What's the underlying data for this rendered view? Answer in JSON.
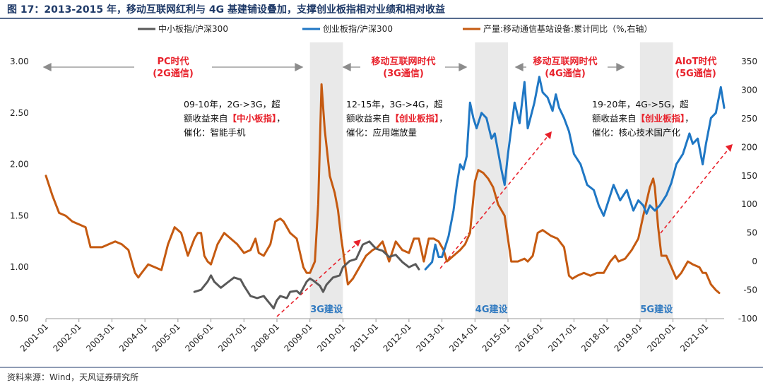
{
  "title": "图 17：2013-2015 年，移动互联网红利与 4G 基建铺设叠加，支撑创业板指相对业绩和相对收益",
  "source": "资料来源：Wind，天风证券研究所",
  "colors": {
    "sme": "#595959",
    "chinext": "#1f77c4",
    "output": "#c55a11",
    "era": "#e8212b",
    "build": "#2f79c0",
    "arrow": "#e8212b",
    "band": "#e9e9e9",
    "title": "#1f3a68"
  },
  "eras": [
    {
      "label1": "PC时代",
      "label2": "(2G通信)"
    },
    {
      "label1": "移动互联网时代",
      "label2": "(3G通信)"
    },
    {
      "label1": "移动互联网时代",
      "label2": "(4G通信)"
    },
    {
      "label1": "AIoT时代",
      "label2": "(5G通信)"
    }
  ],
  "builds": [
    "3G建设",
    "4G建设",
    "5G建设"
  ],
  "notes": [
    {
      "line1": "09-10年，2G->3G，超",
      "line2_pre": "额收益来自",
      "line2_red": "【中小板指】",
      "line2_post": "，",
      "line3": "催化：智能手机"
    },
    {
      "line1": "12-15年，3G->4G，超",
      "line2_pre": "额收益来自",
      "line2_red": "【创业板指】",
      "line2_post": "，",
      "line3": "催化：应用端放量"
    },
    {
      "line1": "19-20年，4G->5G，超",
      "line2_pre": "额收益来自",
      "line2_red": "【创业板指】",
      "line2_post": "，",
      "line3": "催化：核心技术国产化"
    }
  ],
  "chart_data": {
    "type": "line",
    "title": "图 17：2013-2015 年，移动互联网红利与 4G 基建铺设叠加，支撑创业板指相对业绩和相对收益",
    "x_labels": [
      "2001-01",
      "2002-01",
      "2003-01",
      "2004-01",
      "2005-01",
      "2006-01",
      "2007-01",
      "2008-01",
      "2009-01",
      "2010-01",
      "2011-01",
      "2012-01",
      "2013-01",
      "2014-01",
      "2015-01",
      "2016-01",
      "2017-01",
      "2018-01",
      "2019-01",
      "2020-01",
      "2021-01"
    ],
    "y_left": {
      "ylim": [
        0.5,
        3.0
      ],
      "ticks": [
        "0.50",
        "1.00",
        "1.50",
        "2.00",
        "2.50",
        "3.00"
      ]
    },
    "y_right": {
      "ylim": [
        -100,
        350
      ],
      "ticks": [
        "-100",
        "-50",
        "0",
        "50",
        "100",
        "150",
        "200",
        "250",
        "300",
        "350"
      ],
      "label": "%,右轴"
    },
    "legend_position": "top",
    "shaded_periods": [
      {
        "label": "3G建设",
        "start": "2009-01",
        "end": "2010-01"
      },
      {
        "label": "4G建设",
        "start": "2014-01",
        "end": "2015-01"
      },
      {
        "label": "5G建设",
        "start": "2019-01",
        "end": "2020-01"
      }
    ],
    "series": [
      {
        "name": "中小板指/沪深300",
        "axis": "left",
        "points": [
          [
            2005.5,
            0.76
          ],
          [
            2005.7,
            0.78
          ],
          [
            2005.9,
            0.86
          ],
          [
            2006.0,
            0.92
          ],
          [
            2006.1,
            0.86
          ],
          [
            2006.3,
            0.8
          ],
          [
            2006.5,
            0.85
          ],
          [
            2006.7,
            0.9
          ],
          [
            2006.9,
            0.88
          ],
          [
            2007.0,
            0.82
          ],
          [
            2007.2,
            0.72
          ],
          [
            2007.4,
            0.7
          ],
          [
            2007.6,
            0.72
          ],
          [
            2007.8,
            0.64
          ],
          [
            2007.9,
            0.6
          ],
          [
            2008.0,
            0.68
          ],
          [
            2008.1,
            0.72
          ],
          [
            2008.3,
            0.7
          ],
          [
            2008.4,
            0.76
          ],
          [
            2008.6,
            0.77
          ],
          [
            2008.7,
            0.74
          ],
          [
            2008.9,
            0.86
          ],
          [
            2009.0,
            0.89
          ],
          [
            2009.1,
            0.87
          ],
          [
            2009.3,
            0.82
          ],
          [
            2009.4,
            0.76
          ],
          [
            2009.5,
            0.83
          ],
          [
            2009.7,
            0.9
          ],
          [
            2009.9,
            0.92
          ],
          [
            2010.0,
            1.0
          ],
          [
            2010.2,
            1.06
          ],
          [
            2010.4,
            1.08
          ],
          [
            2010.6,
            1.22
          ],
          [
            2010.8,
            1.25
          ],
          [
            2011.0,
            1.18
          ],
          [
            2011.2,
            1.16
          ],
          [
            2011.4,
            1.1
          ],
          [
            2011.6,
            1.12
          ],
          [
            2011.8,
            1.05
          ],
          [
            2012.0,
            1.0
          ],
          [
            2012.2,
            1.03
          ],
          [
            2012.3,
            0.98
          ]
        ]
      },
      {
        "name": "创业板指/沪深300",
        "axis": "left",
        "points": [
          [
            2012.5,
            0.98
          ],
          [
            2012.7,
            1.05
          ],
          [
            2012.8,
            1.22
          ],
          [
            2012.9,
            1.1
          ],
          [
            2013.0,
            1.1
          ],
          [
            2013.1,
            1.2
          ],
          [
            2013.2,
            1.3
          ],
          [
            2013.35,
            1.55
          ],
          [
            2013.45,
            1.8
          ],
          [
            2013.55,
            2.0
          ],
          [
            2013.65,
            1.95
          ],
          [
            2013.75,
            2.08
          ],
          [
            2013.85,
            2.6
          ],
          [
            2013.95,
            2.45
          ],
          [
            2014.05,
            2.35
          ],
          [
            2014.2,
            2.5
          ],
          [
            2014.35,
            2.45
          ],
          [
            2014.5,
            2.25
          ],
          [
            2014.6,
            2.3
          ],
          [
            2014.8,
            1.95
          ],
          [
            2014.9,
            1.8
          ],
          [
            2015.0,
            2.1
          ],
          [
            2015.2,
            2.6
          ],
          [
            2015.35,
            2.4
          ],
          [
            2015.5,
            2.8
          ],
          [
            2015.6,
            2.35
          ],
          [
            2015.8,
            2.6
          ],
          [
            2015.95,
            2.85
          ],
          [
            2016.05,
            2.7
          ],
          [
            2016.2,
            2.65
          ],
          [
            2016.35,
            2.52
          ],
          [
            2016.45,
            2.68
          ],
          [
            2016.55,
            2.55
          ],
          [
            2016.7,
            2.45
          ],
          [
            2016.85,
            2.32
          ],
          [
            2017.0,
            2.1
          ],
          [
            2017.2,
            2.0
          ],
          [
            2017.4,
            1.8
          ],
          [
            2017.6,
            1.75
          ],
          [
            2017.75,
            1.6
          ],
          [
            2017.9,
            1.5
          ],
          [
            2018.0,
            1.6
          ],
          [
            2018.2,
            1.8
          ],
          [
            2018.4,
            1.65
          ],
          [
            2018.6,
            1.75
          ],
          [
            2018.8,
            1.55
          ],
          [
            2018.95,
            1.65
          ],
          [
            2019.1,
            1.6
          ],
          [
            2019.2,
            1.52
          ],
          [
            2019.3,
            1.6
          ],
          [
            2019.45,
            1.55
          ],
          [
            2019.6,
            1.6
          ],
          [
            2019.8,
            1.7
          ],
          [
            2019.95,
            1.82
          ],
          [
            2020.1,
            2.0
          ],
          [
            2020.3,
            2.1
          ],
          [
            2020.5,
            2.3
          ],
          [
            2020.6,
            2.2
          ],
          [
            2020.75,
            2.25
          ],
          [
            2020.9,
            2.0
          ],
          [
            2021.0,
            2.2
          ],
          [
            2021.15,
            2.45
          ],
          [
            2021.3,
            2.5
          ],
          [
            2021.45,
            2.75
          ],
          [
            2021.55,
            2.55
          ]
        ]
      },
      {
        "name": "产量:移动通信基站设备:累计同比",
        "axis": "right",
        "points": [
          [
            2001.0,
            150
          ],
          [
            2001.2,
            115
          ],
          [
            2001.4,
            85
          ],
          [
            2001.6,
            80
          ],
          [
            2001.8,
            70
          ],
          [
            2002.0,
            65
          ],
          [
            2002.2,
            60
          ],
          [
            2002.35,
            25
          ],
          [
            2002.5,
            25
          ],
          [
            2002.7,
            25
          ],
          [
            2002.9,
            30
          ],
          [
            2003.1,
            35
          ],
          [
            2003.3,
            30
          ],
          [
            2003.5,
            20
          ],
          [
            2003.7,
            -20
          ],
          [
            2003.8,
            -28
          ],
          [
            2003.9,
            -20
          ],
          [
            2004.1,
            -5
          ],
          [
            2004.3,
            -10
          ],
          [
            2004.5,
            -15
          ],
          [
            2004.7,
            30
          ],
          [
            2004.9,
            60
          ],
          [
            2005.1,
            50
          ],
          [
            2005.2,
            30
          ],
          [
            2005.3,
            10
          ],
          [
            2005.5,
            40
          ],
          [
            2005.6,
            50
          ],
          [
            2005.7,
            50
          ],
          [
            2005.8,
            10
          ],
          [
            2005.9,
            0
          ],
          [
            2006.0,
            -5
          ],
          [
            2006.2,
            30
          ],
          [
            2006.4,
            50
          ],
          [
            2006.6,
            40
          ],
          [
            2006.8,
            30
          ],
          [
            2007.0,
            15
          ],
          [
            2007.2,
            20
          ],
          [
            2007.35,
            40
          ],
          [
            2007.45,
            15
          ],
          [
            2007.6,
            10
          ],
          [
            2007.8,
            30
          ],
          [
            2007.95,
            70
          ],
          [
            2008.1,
            75
          ],
          [
            2008.2,
            70
          ],
          [
            2008.4,
            50
          ],
          [
            2008.6,
            40
          ],
          [
            2008.8,
            -10
          ],
          [
            2008.9,
            -20
          ],
          [
            2009.0,
            -20
          ],
          [
            2009.15,
            0
          ],
          [
            2009.25,
            100
          ],
          [
            2009.35,
            310
          ],
          [
            2009.45,
            230
          ],
          [
            2009.6,
            150
          ],
          [
            2009.75,
            120
          ],
          [
            2009.85,
            90
          ],
          [
            2009.95,
            40
          ],
          [
            2010.15,
            -40
          ],
          [
            2010.3,
            -30
          ],
          [
            2010.5,
            -10
          ],
          [
            2010.7,
            10
          ],
          [
            2010.9,
            20
          ],
          [
            2011.05,
            25
          ],
          [
            2011.2,
            35
          ],
          [
            2011.4,
            0
          ],
          [
            2011.6,
            35
          ],
          [
            2011.8,
            20
          ],
          [
            2012.0,
            15
          ],
          [
            2012.15,
            40
          ],
          [
            2012.3,
            40
          ],
          [
            2012.45,
            0
          ],
          [
            2012.6,
            40
          ],
          [
            2012.75,
            40
          ],
          [
            2012.9,
            35
          ],
          [
            2013.05,
            20
          ],
          [
            2013.15,
            0
          ],
          [
            2013.35,
            10
          ],
          [
            2013.55,
            20
          ],
          [
            2013.7,
            30
          ],
          [
            2013.85,
            50
          ],
          [
            2014.0,
            140
          ],
          [
            2014.1,
            160
          ],
          [
            2014.25,
            155
          ],
          [
            2014.4,
            145
          ],
          [
            2014.55,
            130
          ],
          [
            2014.7,
            100
          ],
          [
            2014.9,
            80
          ],
          [
            2015.1,
            0
          ],
          [
            2015.3,
            0
          ],
          [
            2015.5,
            5
          ],
          [
            2015.6,
            0
          ],
          [
            2015.75,
            10
          ],
          [
            2015.9,
            50
          ],
          [
            2016.05,
            55
          ],
          [
            2016.3,
            45
          ],
          [
            2016.5,
            40
          ],
          [
            2016.7,
            25
          ],
          [
            2016.85,
            -25
          ],
          [
            2016.95,
            -30
          ],
          [
            2017.1,
            -25
          ],
          [
            2017.3,
            -20
          ],
          [
            2017.5,
            -25
          ],
          [
            2017.7,
            -20
          ],
          [
            2017.9,
            -20
          ],
          [
            2018.1,
            0
          ],
          [
            2018.25,
            10
          ],
          [
            2018.35,
            0
          ],
          [
            2018.55,
            5
          ],
          [
            2018.75,
            20
          ],
          [
            2018.95,
            40
          ],
          [
            2019.1,
            80
          ],
          [
            2019.3,
            130
          ],
          [
            2019.4,
            145
          ],
          [
            2019.45,
            130
          ],
          [
            2019.55,
            60
          ],
          [
            2019.65,
            10
          ],
          [
            2019.8,
            10
          ],
          [
            2019.95,
            -10
          ],
          [
            2020.1,
            -30
          ],
          [
            2020.25,
            -20
          ],
          [
            2020.45,
            0
          ],
          [
            2020.6,
            -5
          ],
          [
            2020.8,
            -10
          ],
          [
            2020.9,
            -20
          ],
          [
            2021.0,
            -20
          ],
          [
            2021.15,
            -40
          ],
          [
            2021.3,
            -50
          ],
          [
            2021.4,
            -55
          ]
        ]
      }
    ]
  }
}
